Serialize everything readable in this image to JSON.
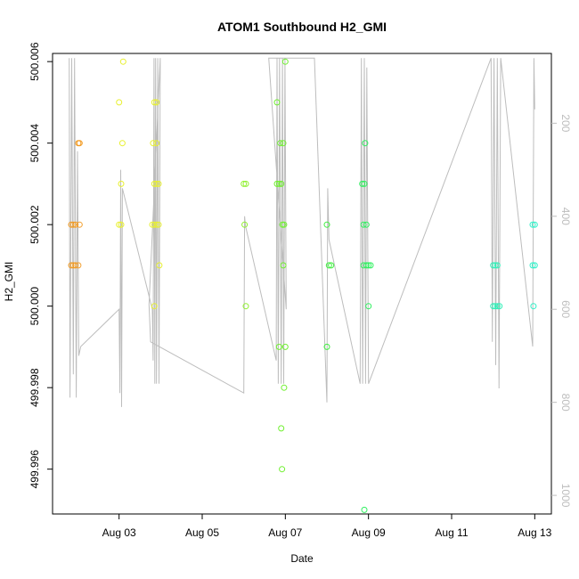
{
  "chart_data": {
    "type": "scatter",
    "title": "ATOM1 Southbound H2_GMI",
    "xlabel": "Date",
    "ylabel": "H2_GMI",
    "x_ticks": [
      "Aug 03",
      "Aug 05",
      "Aug 07",
      "Aug 09",
      "Aug 11",
      "Aug 13"
    ],
    "x_tick_values": [
      3,
      5,
      7,
      9,
      11,
      13
    ],
    "xlim": [
      1.4,
      13.4
    ],
    "y_ticks": [
      "499.996",
      "499.998",
      "500.000",
      "500.002",
      "500.004",
      "500.006"
    ],
    "y_tick_values": [
      499.996,
      499.998,
      500.0,
      500.002,
      500.004,
      500.006
    ],
    "ylim": [
      499.9949,
      500.0062
    ],
    "y2_ticks": [
      "200",
      "400",
      "600",
      "800",
      "1000"
    ],
    "y2_tick_values": [
      200,
      400,
      600,
      800,
      1000
    ],
    "y2lim": [
      50,
      1040
    ],
    "grid": false,
    "legend": "none",
    "points": [
      {
        "x": 1.85,
        "y": 500.001,
        "color": "#f29a20"
      },
      {
        "x": 1.9,
        "y": 500.001,
        "color": "#f29a20"
      },
      {
        "x": 1.95,
        "y": 500.001,
        "color": "#f29a20"
      },
      {
        "x": 1.85,
        "y": 500.002,
        "color": "#f29a20"
      },
      {
        "x": 1.9,
        "y": 500.002,
        "color": "#f29a20"
      },
      {
        "x": 1.95,
        "y": 500.002,
        "color": "#f29a20"
      },
      {
        "x": 2.02,
        "y": 500.004,
        "color": "#f29a20"
      },
      {
        "x": 2.05,
        "y": 500.004,
        "color": "#f29a20"
      },
      {
        "x": 2.02,
        "y": 500.001,
        "color": "#f2a030"
      },
      {
        "x": 2.05,
        "y": 500.002,
        "color": "#f2a030"
      },
      {
        "x": 3.0,
        "y": 500.002,
        "color": "#e8f030"
      },
      {
        "x": 3.05,
        "y": 500.002,
        "color": "#e8f030"
      },
      {
        "x": 3.0,
        "y": 500.005,
        "color": "#e8f030"
      },
      {
        "x": 3.05,
        "y": 500.003,
        "color": "#e8f030"
      },
      {
        "x": 3.08,
        "y": 500.004,
        "color": "#e8f030"
      },
      {
        "x": 3.1,
        "y": 500.006,
        "color": "#e8f030"
      },
      {
        "x": 3.8,
        "y": 500.002,
        "color": "#e8f030"
      },
      {
        "x": 3.85,
        "y": 500.002,
        "color": "#e8f030"
      },
      {
        "x": 3.9,
        "y": 500.002,
        "color": "#e8f030"
      },
      {
        "x": 3.95,
        "y": 500.002,
        "color": "#e8f030"
      },
      {
        "x": 3.85,
        "y": 500.003,
        "color": "#e8f030"
      },
      {
        "x": 3.9,
        "y": 500.003,
        "color": "#e8f030"
      },
      {
        "x": 3.95,
        "y": 500.003,
        "color": "#e8f030"
      },
      {
        "x": 3.82,
        "y": 500.004,
        "color": "#e8f030"
      },
      {
        "x": 3.9,
        "y": 500.004,
        "color": "#e8f030"
      },
      {
        "x": 3.85,
        "y": 500.005,
        "color": "#e8f030"
      },
      {
        "x": 3.9,
        "y": 500.005,
        "color": "#e8f030"
      },
      {
        "x": 3.85,
        "y": 500.0,
        "color": "#e8f030"
      },
      {
        "x": 3.97,
        "y": 500.001,
        "color": "#e8f030"
      },
      {
        "x": 6.0,
        "y": 500.003,
        "color": "#90f030"
      },
      {
        "x": 6.05,
        "y": 500.003,
        "color": "#90f030"
      },
      {
        "x": 6.02,
        "y": 500.002,
        "color": "#90f030"
      },
      {
        "x": 6.05,
        "y": 500.0,
        "color": "#90f030"
      },
      {
        "x": 6.8,
        "y": 500.003,
        "color": "#70f030"
      },
      {
        "x": 6.85,
        "y": 500.003,
        "color": "#70f030"
      },
      {
        "x": 6.9,
        "y": 500.003,
        "color": "#70f030"
      },
      {
        "x": 6.8,
        "y": 500.005,
        "color": "#70f030"
      },
      {
        "x": 6.88,
        "y": 500.004,
        "color": "#70f030"
      },
      {
        "x": 6.95,
        "y": 500.004,
        "color": "#70f030"
      },
      {
        "x": 6.93,
        "y": 500.002,
        "color": "#70f030"
      },
      {
        "x": 6.97,
        "y": 500.002,
        "color": "#70f030"
      },
      {
        "x": 6.95,
        "y": 500.001,
        "color": "#70f030"
      },
      {
        "x": 7.0,
        "y": 500.006,
        "color": "#70f030"
      },
      {
        "x": 6.85,
        "y": 499.999,
        "color": "#70f030"
      },
      {
        "x": 7.0,
        "y": 499.999,
        "color": "#70f030"
      },
      {
        "x": 6.97,
        "y": 499.998,
        "color": "#70f030"
      },
      {
        "x": 6.9,
        "y": 499.997,
        "color": "#70f030"
      },
      {
        "x": 6.92,
        "y": 499.996,
        "color": "#70f030"
      },
      {
        "x": 8.0,
        "y": 500.002,
        "color": "#40f040"
      },
      {
        "x": 8.05,
        "y": 500.001,
        "color": "#40f040"
      },
      {
        "x": 8.1,
        "y": 500.001,
        "color": "#40f040"
      },
      {
        "x": 8.0,
        "y": 499.999,
        "color": "#40f040"
      },
      {
        "x": 8.85,
        "y": 500.003,
        "color": "#30f060"
      },
      {
        "x": 8.9,
        "y": 500.003,
        "color": "#30f060"
      },
      {
        "x": 8.92,
        "y": 500.004,
        "color": "#30f060"
      },
      {
        "x": 8.88,
        "y": 500.002,
        "color": "#30f060"
      },
      {
        "x": 8.95,
        "y": 500.002,
        "color": "#30f060"
      },
      {
        "x": 8.88,
        "y": 500.001,
        "color": "#30f060"
      },
      {
        "x": 8.95,
        "y": 500.001,
        "color": "#30f060"
      },
      {
        "x": 9.0,
        "y": 500.001,
        "color": "#30f060"
      },
      {
        "x": 9.05,
        "y": 500.001,
        "color": "#30f060"
      },
      {
        "x": 9.0,
        "y": 500.0,
        "color": "#30f060"
      },
      {
        "x": 8.9,
        "y": 499.995,
        "color": "#30f060"
      },
      {
        "x": 12.0,
        "y": 500.001,
        "color": "#30f0b8"
      },
      {
        "x": 12.05,
        "y": 500.001,
        "color": "#30f0b8"
      },
      {
        "x": 12.1,
        "y": 500.001,
        "color": "#30f0b8"
      },
      {
        "x": 12.0,
        "y": 500.0,
        "color": "#30f0b8"
      },
      {
        "x": 12.05,
        "y": 500.0,
        "color": "#30f0b8"
      },
      {
        "x": 12.1,
        "y": 500.0,
        "color": "#30f0b8"
      },
      {
        "x": 12.15,
        "y": 500.0,
        "color": "#30f0b8"
      },
      {
        "x": 12.95,
        "y": 500.002,
        "color": "#30f0c8"
      },
      {
        "x": 13.0,
        "y": 500.002,
        "color": "#30f0c8"
      },
      {
        "x": 12.95,
        "y": 500.001,
        "color": "#30f0c8"
      },
      {
        "x": 13.0,
        "y": 500.001,
        "color": "#30f0c8"
      },
      {
        "x": 12.97,
        "y": 500.0,
        "color": "#30f0c8"
      }
    ],
    "depth_trace_y2": [
      {
        "x": 1.8,
        "y": 60
      },
      {
        "x": 1.82,
        "y": 790
      },
      {
        "x": 1.86,
        "y": 60
      },
      {
        "x": 1.9,
        "y": 740
      },
      {
        "x": 1.93,
        "y": 60
      },
      {
        "x": 1.97,
        "y": 790
      },
      {
        "x": 2.0,
        "y": 260
      },
      {
        "x": 2.03,
        "y": 700
      },
      {
        "x": 2.08,
        "y": 680
      },
      {
        "x": 3.0,
        "y": 600
      },
      {
        "x": 3.02,
        "y": 780
      },
      {
        "x": 3.04,
        "y": 300
      },
      {
        "x": 3.06,
        "y": 810
      },
      {
        "x": 3.08,
        "y": 340
      },
      {
        "x": 3.8,
        "y": 600
      },
      {
        "x": 3.82,
        "y": 710
      },
      {
        "x": 3.84,
        "y": 60
      },
      {
        "x": 3.86,
        "y": 760
      },
      {
        "x": 3.88,
        "y": 60
      },
      {
        "x": 3.9,
        "y": 760
      },
      {
        "x": 3.93,
        "y": 60
      },
      {
        "x": 3.96,
        "y": 760
      },
      {
        "x": 3.99,
        "y": 60
      },
      {
        "x": 3.72,
        "y": 590
      },
      {
        "x": 3.76,
        "y": 670
      },
      {
        "x": 6.0,
        "y": 780
      },
      {
        "x": 6.02,
        "y": 400
      },
      {
        "x": 6.04,
        "y": 420
      },
      {
        "x": 6.78,
        "y": 710
      },
      {
        "x": 6.8,
        "y": 60
      },
      {
        "x": 6.83,
        "y": 760
      },
      {
        "x": 6.86,
        "y": 60
      },
      {
        "x": 6.9,
        "y": 760
      },
      {
        "x": 6.93,
        "y": 60
      },
      {
        "x": 6.96,
        "y": 760
      },
      {
        "x": 6.99,
        "y": 60
      },
      {
        "x": 7.02,
        "y": 600
      },
      {
        "x": 6.6,
        "y": 60
      },
      {
        "x": 7.7,
        "y": 60
      },
      {
        "x": 8.0,
        "y": 800
      },
      {
        "x": 8.02,
        "y": 340
      },
      {
        "x": 8.05,
        "y": 450
      },
      {
        "x": 8.8,
        "y": 760
      },
      {
        "x": 8.83,
        "y": 60
      },
      {
        "x": 8.86,
        "y": 760
      },
      {
        "x": 8.9,
        "y": 60
      },
      {
        "x": 8.93,
        "y": 760
      },
      {
        "x": 8.96,
        "y": 80
      },
      {
        "x": 9.0,
        "y": 760
      },
      {
        "x": 11.95,
        "y": 60
      },
      {
        "x": 11.98,
        "y": 670
      },
      {
        "x": 12.02,
        "y": 60
      },
      {
        "x": 12.06,
        "y": 720
      },
      {
        "x": 12.1,
        "y": 60
      },
      {
        "x": 12.14,
        "y": 770
      },
      {
        "x": 12.18,
        "y": 60
      },
      {
        "x": 12.95,
        "y": 680
      },
      {
        "x": 12.98,
        "y": 60
      },
      {
        "x": 13.0,
        "y": 170
      }
    ]
  }
}
